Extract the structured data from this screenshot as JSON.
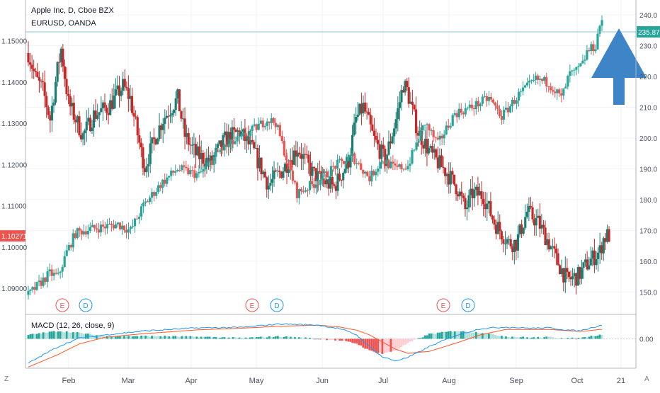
{
  "legend": {
    "main": "Apple Inc, D, Cboe BZX",
    "compare": "EURUSD, OANDA",
    "macd": "MACD (12, 26, close, 9)"
  },
  "corner": {
    "left": "Z",
    "right": "A"
  },
  "colors": {
    "up": "#26a69a",
    "down": "#ef5350",
    "up_dark": "#1a7d72",
    "down_dark": "#c62828",
    "macd_line": "#2196f3",
    "signal_line": "#ff5722",
    "hist_pos_strong": "#26a69a",
    "hist_pos_weak": "#b2dfdb",
    "hist_neg_strong": "#ef5350",
    "hist_neg_weak": "#ffcdd2",
    "arrow": "#3d85c6",
    "level_line": "#80cbc4",
    "grid": "#f0f3fa",
    "axis_text": "#4c525e",
    "earnings": "#ef5350",
    "dividend": "#2196f3"
  },
  "chart_data": [
    {
      "type": "candlestick",
      "name": "Apple Inc (left scale)",
      "x_months": [
        "Feb",
        "Mar",
        "Apr",
        "May",
        "Jun",
        "Jul",
        "Aug",
        "Sep",
        "Oct",
        "21"
      ],
      "ylim": [
        145,
        243
      ],
      "yticks": [
        150,
        160,
        170,
        180,
        190,
        200,
        210,
        220,
        230,
        240
      ],
      "last_price_label": "235.87",
      "level_line": 234.5,
      "anchors": [
        [
          0,
          149
        ],
        [
          10,
          156
        ],
        [
          14,
          155
        ],
        [
          18,
          163
        ],
        [
          22,
          169
        ],
        [
          26,
          170
        ],
        [
          42,
          172
        ],
        [
          48,
          170
        ],
        [
          54,
          178
        ],
        [
          62,
          185
        ],
        [
          70,
          190
        ],
        [
          80,
          188
        ],
        [
          90,
          196
        ],
        [
          100,
          200
        ],
        [
          112,
          206
        ],
        [
          116,
          205
        ],
        [
          126,
          182
        ],
        [
          136,
          186
        ],
        [
          144,
          191
        ],
        [
          152,
          194
        ],
        [
          160,
          187
        ],
        [
          166,
          193
        ],
        [
          172,
          190
        ],
        [
          178,
          191
        ],
        [
          186,
          205
        ],
        [
          192,
          198
        ],
        [
          200,
          208
        ],
        [
          208,
          210
        ],
        [
          216,
          213
        ],
        [
          222,
          207
        ],
        [
          230,
          214
        ],
        [
          238,
          219
        ],
        [
          244,
          218
        ],
        [
          250,
          213
        ],
        [
          254,
          221
        ],
        [
          256,
          221
        ],
        [
          260,
          224
        ],
        [
          262,
          228
        ],
        [
          266,
          230
        ],
        [
          268,
          237
        ]
      ]
    },
    {
      "type": "candlestick",
      "name": "EURUSD (right scale)",
      "ylim": [
        1.0854,
        1.1585
      ],
      "yticks": [
        1.09,
        1.1,
        1.11,
        1.12,
        1.13,
        1.14,
        1.15
      ],
      "ytick_labels": [
        "1.09000",
        "1.10000",
        "1.11000",
        "1.12000",
        "1.13000",
        "1.14000",
        "1.15000"
      ],
      "last_price_label": "1.10271",
      "anchors": [
        [
          0,
          1.147
        ],
        [
          4,
          1.141
        ],
        [
          8,
          1.138
        ],
        [
          12,
          1.131
        ],
        [
          16,
          1.143
        ],
        [
          18,
          1.148
        ],
        [
          22,
          1.135
        ],
        [
          26,
          1.131
        ],
        [
          30,
          1.127
        ],
        [
          36,
          1.132
        ],
        [
          44,
          1.134
        ],
        [
          52,
          1.139
        ],
        [
          56,
          1.136
        ],
        [
          62,
          1.123
        ],
        [
          64,
          1.1195
        ],
        [
          70,
          1.127
        ],
        [
          74,
          1.131
        ],
        [
          82,
          1.136
        ],
        [
          86,
          1.127
        ],
        [
          92,
          1.1225
        ],
        [
          100,
          1.1205
        ],
        [
          108,
          1.126
        ],
        [
          116,
          1.128
        ],
        [
          124,
          1.123
        ],
        [
          128,
          1.119
        ],
        [
          132,
          1.115
        ],
        [
          140,
          1.119
        ],
        [
          148,
          1.124
        ],
        [
          156,
          1.118
        ],
        [
          162,
          1.116
        ],
        [
          168,
          1.1145
        ],
        [
          176,
          1.121
        ],
        [
          180,
          1.131
        ],
        [
          184,
          1.134
        ],
        [
          190,
          1.126
        ],
        [
          196,
          1.121
        ],
        [
          202,
          1.131
        ],
        [
          206,
          1.1395
        ],
        [
          208,
          1.138
        ],
        [
          214,
          1.128
        ],
        [
          222,
          1.122
        ],
        [
          230,
          1.118
        ],
        [
          236,
          1.114
        ],
        [
          240,
          1.109
        ],
        [
          244,
          1.113
        ],
        [
          250,
          1.1125
        ],
        [
          256,
          1.106
        ],
        [
          264,
          1.101
        ],
        [
          268,
          1.101
        ],
        [
          274,
          1.1085
        ],
        [
          280,
          1.106
        ],
        [
          286,
          1.101
        ],
        [
          290,
          1.097
        ],
        [
          296,
          1.092
        ],
        [
          302,
          1.093
        ],
        [
          308,
          1.0965
        ],
        [
          314,
          1.099
        ],
        [
          316,
          1.102
        ],
        [
          318,
          1.1028
        ]
      ]
    },
    {
      "type": "macd",
      "name": "MACD (12, 26, close, 9)",
      "ylim": [
        -7.5,
        5.5
      ],
      "yticks": [
        0
      ],
      "ytick_labels": [
        "0.00"
      ],
      "macd_anchors": [
        [
          0,
          -6.2
        ],
        [
          14,
          -2
        ],
        [
          24,
          0.2
        ],
        [
          36,
          1
        ],
        [
          54,
          2
        ],
        [
          80,
          2.8
        ],
        [
          100,
          2.9
        ],
        [
          118,
          3.8
        ],
        [
          136,
          3.5
        ],
        [
          146,
          2.6
        ],
        [
          154,
          1
        ],
        [
          160,
          -2
        ],
        [
          166,
          -4.6
        ],
        [
          172,
          -5.6
        ],
        [
          178,
          -4.8
        ],
        [
          188,
          -2
        ],
        [
          200,
          0.8
        ],
        [
          212,
          2.6
        ],
        [
          224,
          3
        ],
        [
          236,
          2.7
        ],
        [
          244,
          2.8
        ],
        [
          252,
          2.3
        ],
        [
          258,
          2
        ],
        [
          262,
          2.5
        ],
        [
          268,
          3.4
        ]
      ],
      "signal_anchors": [
        [
          0,
          -7.2
        ],
        [
          14,
          -4
        ],
        [
          24,
          -1.3
        ],
        [
          36,
          0.4
        ],
        [
          54,
          1.3
        ],
        [
          80,
          2.3
        ],
        [
          100,
          2.7
        ],
        [
          118,
          3.2
        ],
        [
          136,
          3.5
        ],
        [
          146,
          3
        ],
        [
          154,
          2.2
        ],
        [
          160,
          1
        ],
        [
          166,
          -0.8
        ],
        [
          172,
          -2.6
        ],
        [
          178,
          -3.7
        ],
        [
          188,
          -3.2
        ],
        [
          200,
          -1.2
        ],
        [
          212,
          1
        ],
        [
          224,
          2.4
        ],
        [
          236,
          2.4
        ],
        [
          244,
          2.4
        ],
        [
          252,
          2.1
        ],
        [
          258,
          1.9
        ],
        [
          262,
          2
        ],
        [
          268,
          2.4
        ]
      ]
    }
  ],
  "events": {
    "earnings_label": "E",
    "dividend_label": "D",
    "earnings_days": [
      22,
      155,
      266
    ],
    "dividend_days": [
      38,
      170,
      286
    ]
  },
  "annotation": {
    "type": "arrow",
    "direction": "up",
    "label": ""
  }
}
